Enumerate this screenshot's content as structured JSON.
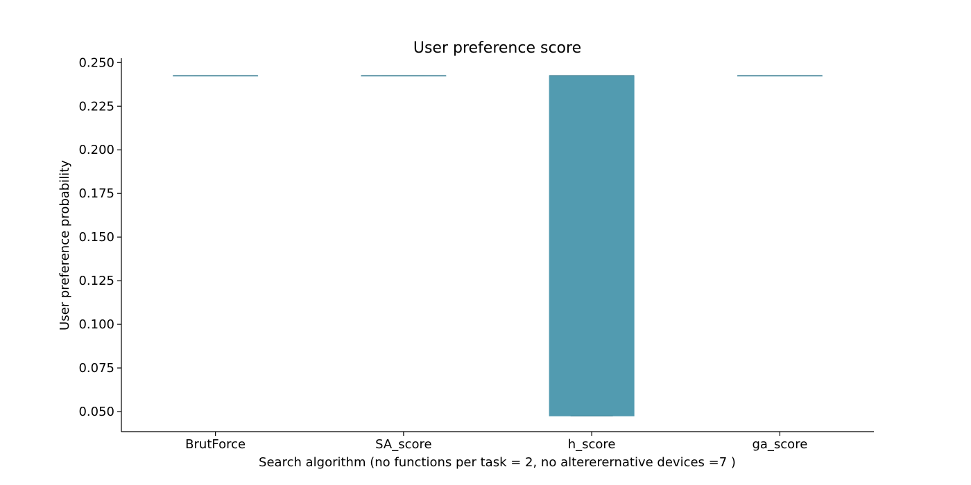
{
  "chart_data": {
    "type": "box",
    "title": "User preference score",
    "xlabel": "Search algorithm (no functions per task = 2, no altererernative devices =7 )",
    "ylabel": "User preference probability",
    "ylim": [
      0.0385,
      0.2525
    ],
    "yticks": [
      "0.050",
      "0.075",
      "0.100",
      "0.125",
      "0.150",
      "0.175",
      "0.200",
      "0.225",
      "0.250"
    ],
    "categories": [
      "BrutForce",
      "SA_score",
      "h_score",
      "ga_score"
    ],
    "boxes": [
      {
        "q1": 0.2425,
        "median": 0.2425,
        "q3": 0.2425,
        "whislo": 0.2425,
        "whishi": 0.2425
      },
      {
        "q1": 0.2425,
        "median": 0.2425,
        "q3": 0.2425,
        "whislo": 0.2425,
        "whishi": 0.2425
      },
      {
        "q1": 0.0475,
        "median": 0.2425,
        "q3": 0.2425,
        "whislo": 0.0475,
        "whishi": 0.2425
      },
      {
        "q1": 0.2425,
        "median": 0.2425,
        "q3": 0.2425,
        "whislo": 0.2425,
        "whishi": 0.2425
      }
    ],
    "box_color": "#529bb0",
    "edge_color": "#3f7f92",
    "grid": false
  }
}
